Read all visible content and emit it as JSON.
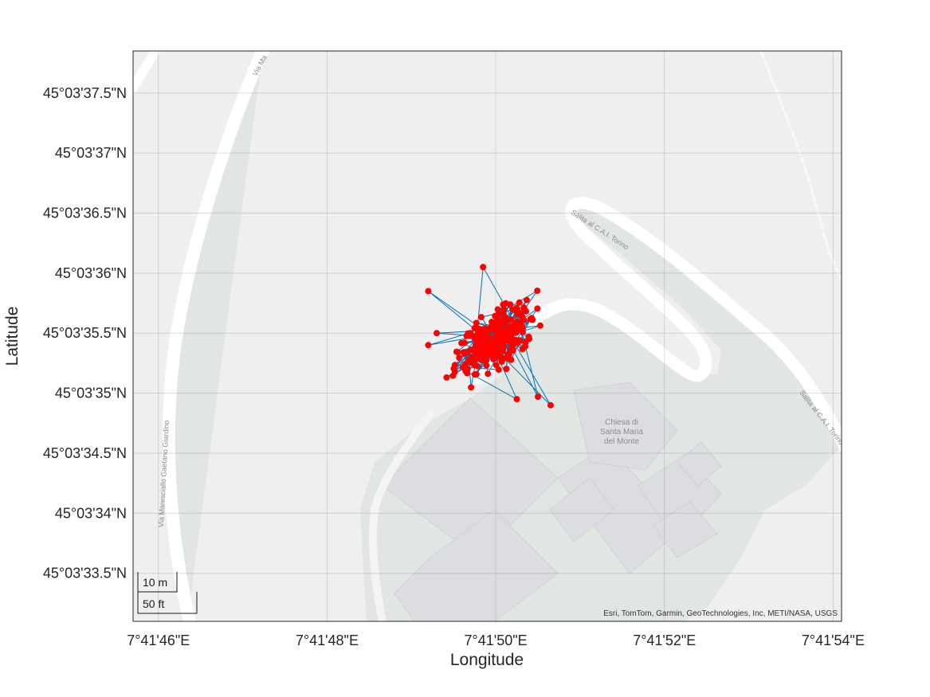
{
  "axes": {
    "xlabel": "Longitude",
    "ylabel": "Latitude",
    "xticks": [
      "7°41'46\"E",
      "7°41'48\"E",
      "7°41'50\"E",
      "7°41'52\"E",
      "7°41'54\"E"
    ],
    "yticks": [
      "45°03'37.5\"N",
      "45°03'37\"N",
      "45°03'36.5\"N",
      "45°03'36\"N",
      "45°03'35.5\"N",
      "45°03'35\"N",
      "45°03'34.5\"N",
      "45°03'34\"N",
      "45°03'33.5\"N"
    ],
    "grid": true
  },
  "map_labels": {
    "road_top_left": "Via Ma",
    "road_left": "Via Maresciallo Gaetano Giardino",
    "road_curve": "Salita al C.A.I. Torino",
    "road_right": "Salita al C.A.I. Torino",
    "church_line1": "Chiesa di",
    "church_line2": "Santa Maria",
    "church_line3": "del Monte"
  },
  "scalebar": {
    "metric": "10 m",
    "imperial": "50 ft"
  },
  "attribution": "Esri, TomTom, Garmin, GeoTechnologies, Inc, METI/NASA, USGS",
  "colors": {
    "points": "#ff0000",
    "track": "#0072bd",
    "park": "#e2e6e3",
    "land": "#efefef",
    "building": "#dcdde0",
    "road": "#ffffff"
  },
  "chart_data": {
    "type": "scatter",
    "xlabel": "Longitude",
    "ylabel": "Latitude",
    "x_unit": "arcseconds past 7°41' E",
    "y_unit": "arcseconds past 45°03' N",
    "xlim": [
      45.7,
      54.1
    ],
    "ylim": [
      33.1,
      37.85
    ],
    "seed": 7,
    "num_points": 300,
    "center": [
      50.0,
      35.45
    ],
    "spread": [
      0.35,
      0.2
    ],
    "extremes": [
      [
        49.7,
        35.5
      ],
      [
        49.3,
        35.5
      ],
      [
        49.2,
        35.85
      ],
      [
        49.85,
        36.05
      ],
      [
        50.65,
        34.9
      ],
      [
        50.5,
        34.97
      ],
      [
        50.25,
        34.95
      ],
      [
        49.2,
        35.4
      ]
    ]
  }
}
